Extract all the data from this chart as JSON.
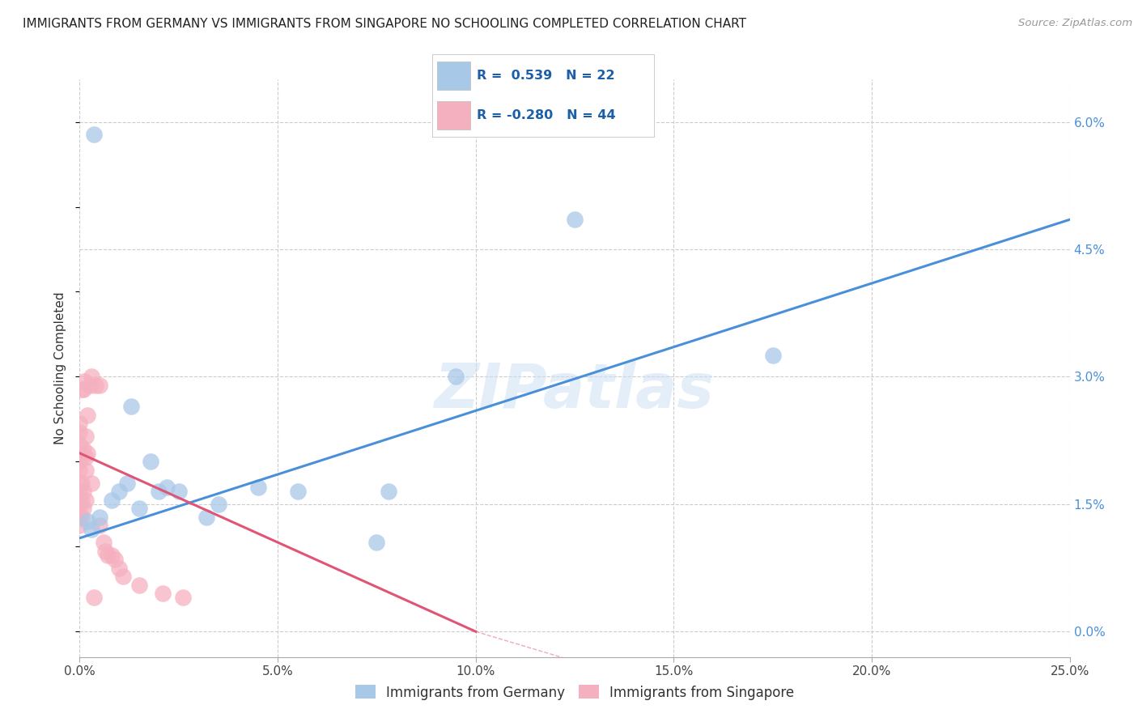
{
  "title": "IMMIGRANTS FROM GERMANY VS IMMIGRANTS FROM SINGAPORE NO SCHOOLING COMPLETED CORRELATION CHART",
  "source": "Source: ZipAtlas.com",
  "ylabel": "No Schooling Completed",
  "ytick_vals": [
    0.0,
    1.5,
    3.0,
    4.5,
    6.0
  ],
  "xlim": [
    0.0,
    25.0
  ],
  "ylim": [
    -0.3,
    6.5
  ],
  "legend_blue_r": "0.539",
  "legend_blue_n": "22",
  "legend_pink_r": "-0.280",
  "legend_pink_n": "44",
  "legend_label_blue": "Immigrants from Germany",
  "legend_label_pink": "Immigrants from Singapore",
  "blue_color": "#a8c8e8",
  "pink_color": "#f5b0c0",
  "blue_line_color": "#4a90d9",
  "pink_line_color": "#e05575",
  "watermark": "ZIPatlas",
  "blue_scatter_x": [
    0.2,
    0.3,
    0.5,
    0.8,
    1.0,
    1.2,
    1.3,
    1.5,
    1.8,
    2.0,
    2.2,
    2.5,
    3.2,
    3.5,
    4.5,
    5.5,
    7.5,
    7.8,
    9.5,
    12.5,
    17.5,
    0.35
  ],
  "blue_scatter_y": [
    1.3,
    1.2,
    1.35,
    1.55,
    1.65,
    1.75,
    2.65,
    1.45,
    2.0,
    1.65,
    1.7,
    1.65,
    1.35,
    1.5,
    1.7,
    1.65,
    1.05,
    1.65,
    3.0,
    4.85,
    3.25,
    5.85
  ],
  "pink_scatter_x": [
    0.0,
    0.0,
    0.0,
    0.0,
    0.0,
    0.0,
    0.0,
    0.0,
    0.0,
    0.0,
    0.0,
    0.0,
    0.05,
    0.05,
    0.05,
    0.05,
    0.1,
    0.1,
    0.1,
    0.1,
    0.12,
    0.15,
    0.15,
    0.15,
    0.15,
    0.2,
    0.2,
    0.25,
    0.3,
    0.3,
    0.35,
    0.4,
    0.5,
    0.5,
    0.6,
    0.65,
    0.7,
    0.8,
    0.9,
    1.0,
    1.1,
    1.5,
    2.1,
    2.6
  ],
  "pink_scatter_y": [
    1.25,
    1.35,
    1.45,
    1.55,
    1.65,
    1.75,
    1.9,
    2.0,
    2.1,
    2.2,
    2.35,
    2.45,
    1.35,
    1.55,
    1.75,
    2.85,
    1.45,
    1.65,
    2.15,
    2.85,
    2.95,
    1.55,
    1.9,
    2.05,
    2.3,
    2.1,
    2.55,
    2.9,
    1.75,
    3.0,
    0.4,
    2.9,
    1.25,
    2.9,
    1.05,
    0.95,
    0.9,
    0.9,
    0.85,
    0.75,
    0.65,
    0.55,
    0.45,
    0.4
  ],
  "blue_line_x_start": 0.0,
  "blue_line_x_end": 25.0,
  "blue_line_y_start": 1.1,
  "blue_line_y_end": 4.85,
  "pink_line_x_start": 0.0,
  "pink_line_x_end": 10.0,
  "pink_line_y_start": 2.1,
  "pink_line_y_end": 0.0
}
